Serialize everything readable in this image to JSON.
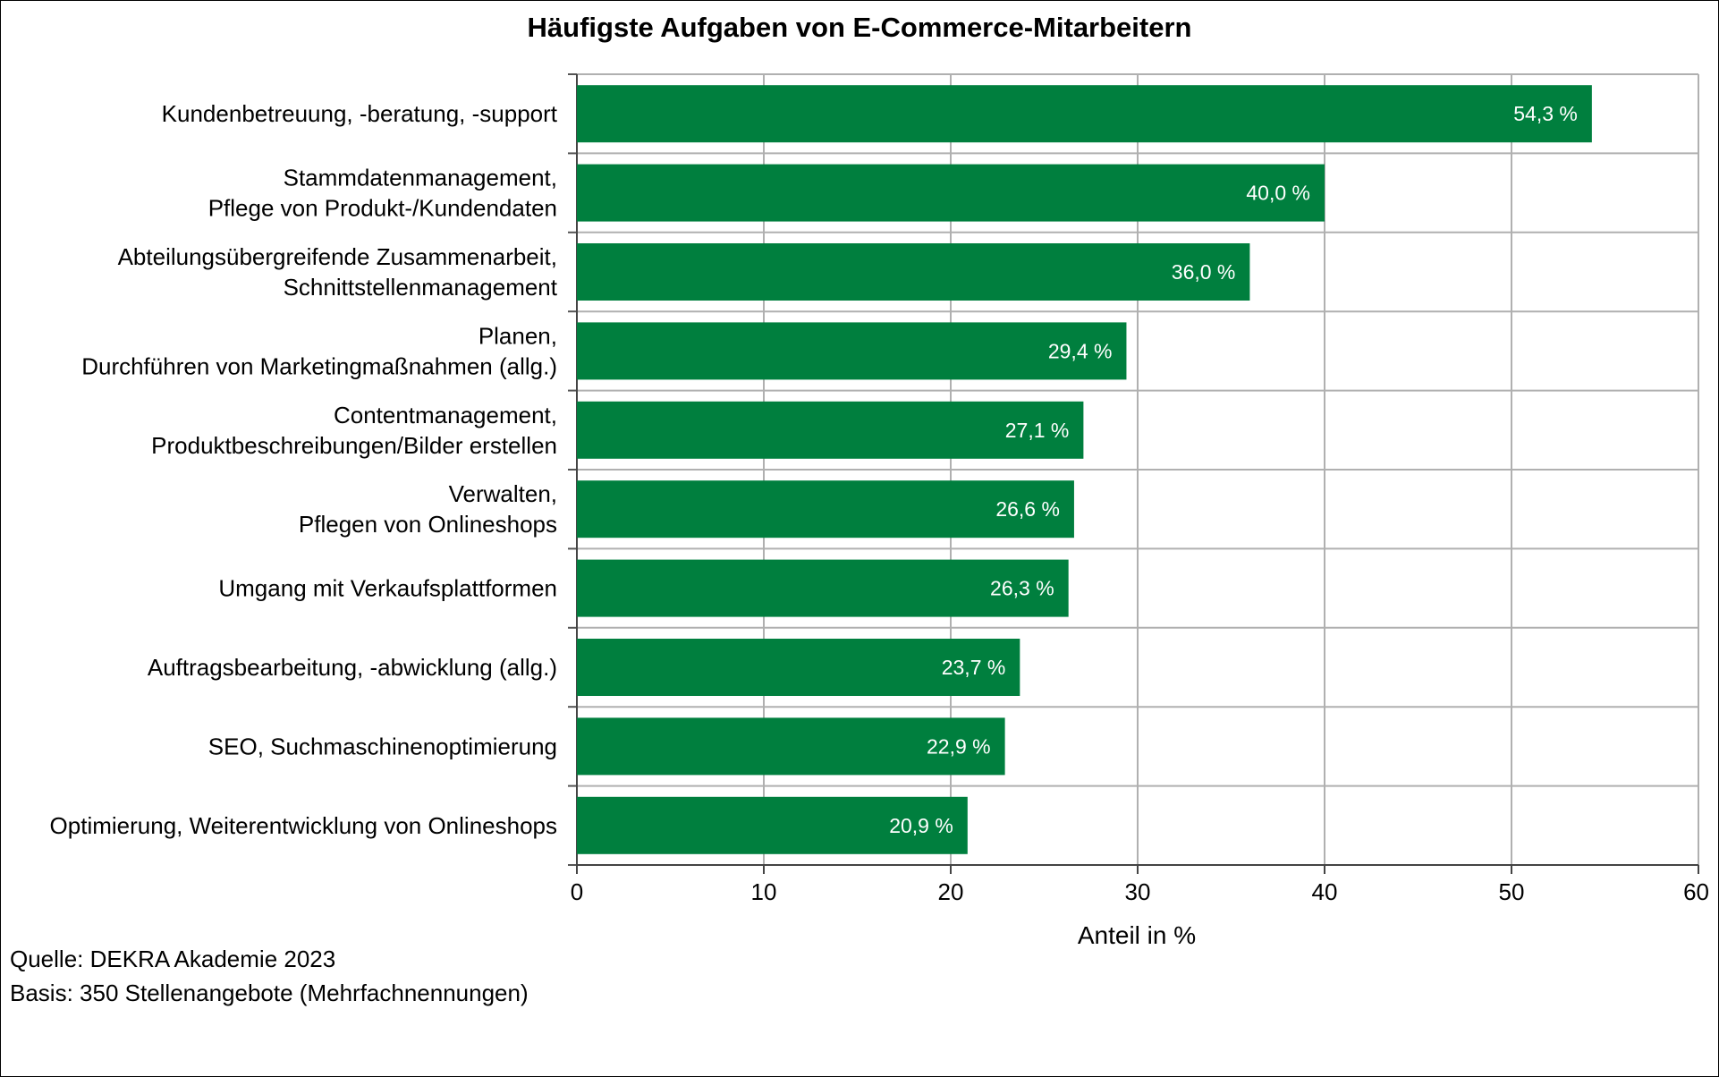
{
  "chart_data": {
    "type": "bar",
    "orientation": "horizontal",
    "title": "Häufigste Aufgaben von E-Commerce-Mitarbeitern",
    "xlabel": "Anteil in %",
    "ylabel": "",
    "xlim": [
      0,
      60
    ],
    "xticks": [
      0,
      10,
      20,
      30,
      40,
      50,
      60
    ],
    "grid": true,
    "bar_color": "#007f3e",
    "categories": [
      [
        "Kundenbetreuung, -beratung, -support"
      ],
      [
        "Stammdatenmanagement,",
        "Pflege von Produkt-/Kundendaten"
      ],
      [
        "Abteilungsübergreifende Zusammenarbeit,",
        "Schnittstellenmanagement"
      ],
      [
        "Planen,",
        "Durchführen von Marketingmaßnahmen (allg.)"
      ],
      [
        "Contentmanagement,",
        "Produktbeschreibungen/Bilder erstellen"
      ],
      [
        "Verwalten,",
        "Pflegen von Onlineshops"
      ],
      [
        "Umgang mit Verkaufsplattformen"
      ],
      [
        "Auftragsbearbeitung, -abwicklung (allg.)"
      ],
      [
        "SEO, Suchmaschinenoptimierung"
      ],
      [
        "Optimierung, Weiterentwicklung von Onlineshops"
      ]
    ],
    "values": [
      54.3,
      40.0,
      36.0,
      29.4,
      27.1,
      26.6,
      26.3,
      23.7,
      22.9,
      20.9
    ],
    "value_labels": [
      "54,3 %",
      "40,0 %",
      "36,0 %",
      "29,4 %",
      "27,1 %",
      "26,6 %",
      "26,3 %",
      "23,7 %",
      "22,9 %",
      "20,9 %"
    ]
  },
  "footnotes": {
    "source": "Quelle: DEKRA Akademie 2023",
    "basis": "Basis: 350 Stellenangebote (Mehrfachnennungen)"
  }
}
